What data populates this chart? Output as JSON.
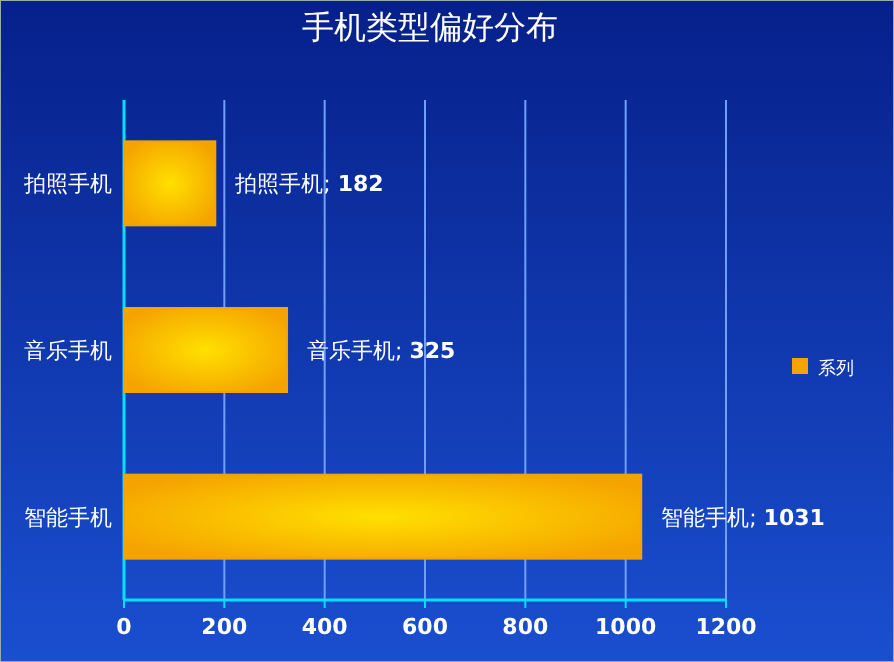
{
  "chart_data": {
    "type": "bar",
    "orientation": "horizontal",
    "title": "手机类型偏好分布",
    "categories": [
      "拍照手机",
      "音乐手机",
      "智能手机"
    ],
    "series": [
      {
        "name": "系列",
        "color": "#f5a300",
        "values": [
          182,
          325,
          1031
        ]
      }
    ],
    "value_labels": [
      "拍照手机; **182**",
      "音乐手机; **325**",
      "智能手机; **1031**"
    ],
    "xlim": [
      0,
      1200
    ],
    "xticks": [
      0,
      200,
      400,
      600,
      800,
      1000,
      1200
    ],
    "grid": "x",
    "legend": "right"
  }
}
